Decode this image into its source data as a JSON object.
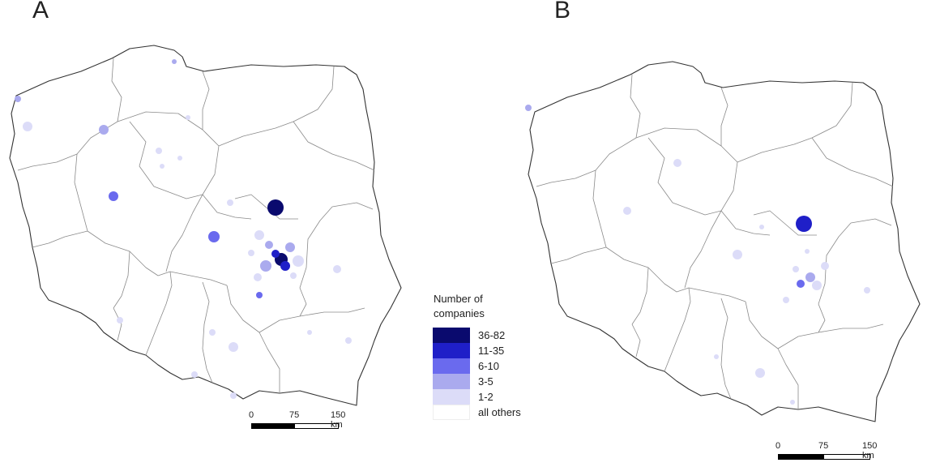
{
  "panels": [
    {
      "label": "A"
    },
    {
      "label": "B"
    }
  ],
  "legend": {
    "title_line1": "Number of",
    "title_line2": "companies",
    "classes": [
      {
        "label": "36-82",
        "color": "#0a0a6e"
      },
      {
        "label": "11-35",
        "color": "#1f1fc8"
      },
      {
        "label": "6-10",
        "color": "#6a6aee"
      },
      {
        "label": "3-5",
        "color": "#aaaaee"
      },
      {
        "label": "1-2",
        "color": "#dcdcf8"
      },
      {
        "label": "all others",
        "color": "#ffffff"
      }
    ]
  },
  "scalebar": {
    "ticks": [
      "0",
      "75",
      "150 km"
    ]
  }
}
